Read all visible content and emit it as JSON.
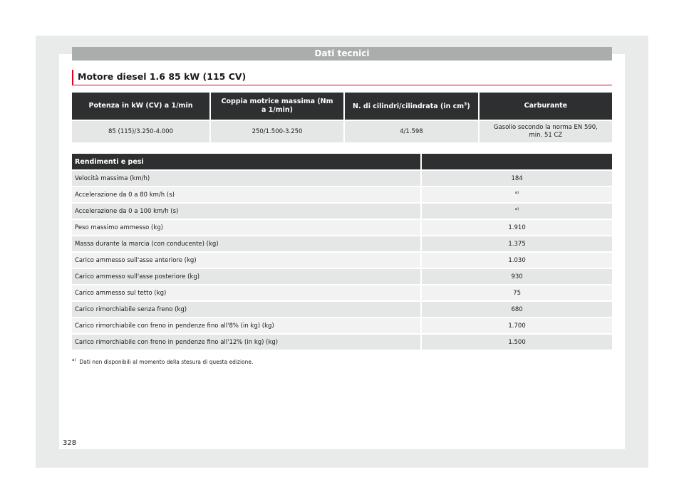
{
  "section_title": "Dati tecnici",
  "engine_title": "Motore diesel 1.6 85 kW (115 CV)",
  "spec_table": {
    "headers": {
      "power": "Potenza in kW (CV) a 1/min",
      "torque": "Coppia motrice massima (Nm a 1/min)",
      "cylinders_prefix": "N. di cilindri/cilindrata (in cm",
      "cylinders_sup": "3",
      "cylinders_suffix": ")",
      "fuel": "Carburante"
    },
    "row": {
      "power": "85 (115)/3.250-4.000",
      "torque": "250/1.500-3.250",
      "cylinders": "4/1.598",
      "fuel": "Gasolio secondo la norma EN 590, min. 51 CZ"
    }
  },
  "perf_table": {
    "header_label": "Rendimenti e pesi",
    "header_value": "",
    "rows": [
      {
        "label": "Velocità massima (km/h)",
        "value": "184",
        "note": ""
      },
      {
        "label": "Accelerazione da 0 a 80 km/h (s)",
        "value": "",
        "note": "a)"
      },
      {
        "label": "Accelerazione da 0 a 100 km/h (s)",
        "value": "",
        "note": "a)"
      },
      {
        "label": "Peso massimo ammesso (kg)",
        "value": "1.910",
        "note": ""
      },
      {
        "label": "Massa durante la marcia (con conducente) (kg)",
        "value": "1.375",
        "note": ""
      },
      {
        "label": "Carico ammesso sull'asse anteriore (kg)",
        "value": "1.030",
        "note": ""
      },
      {
        "label": "Carico ammesso sull'asse posteriore (kg)",
        "value": "930",
        "note": ""
      },
      {
        "label": "Carico ammesso sul tetto (kg)",
        "value": "75",
        "note": ""
      },
      {
        "label": "Carico rimorchiabile senza freno (kg)",
        "value": "680",
        "note": ""
      },
      {
        "label": "Carico rimorchiabile con freno in pendenze fino all'8% (in kg) (kg)",
        "value": "1.700",
        "note": ""
      },
      {
        "label": "Carico rimorchiabile con freno in pendenze fino all'12% (in kg) (kg)",
        "value": "1.500",
        "note": ""
      }
    ]
  },
  "footnote": {
    "mark": "a)",
    "text": "Dati non disponibili al momento della stesura di questa edizione."
  },
  "page_number": "328",
  "colors": {
    "accent": "#e2001a",
    "header_dark": "#2e2f30",
    "section_bar": "#a9aeac"
  }
}
